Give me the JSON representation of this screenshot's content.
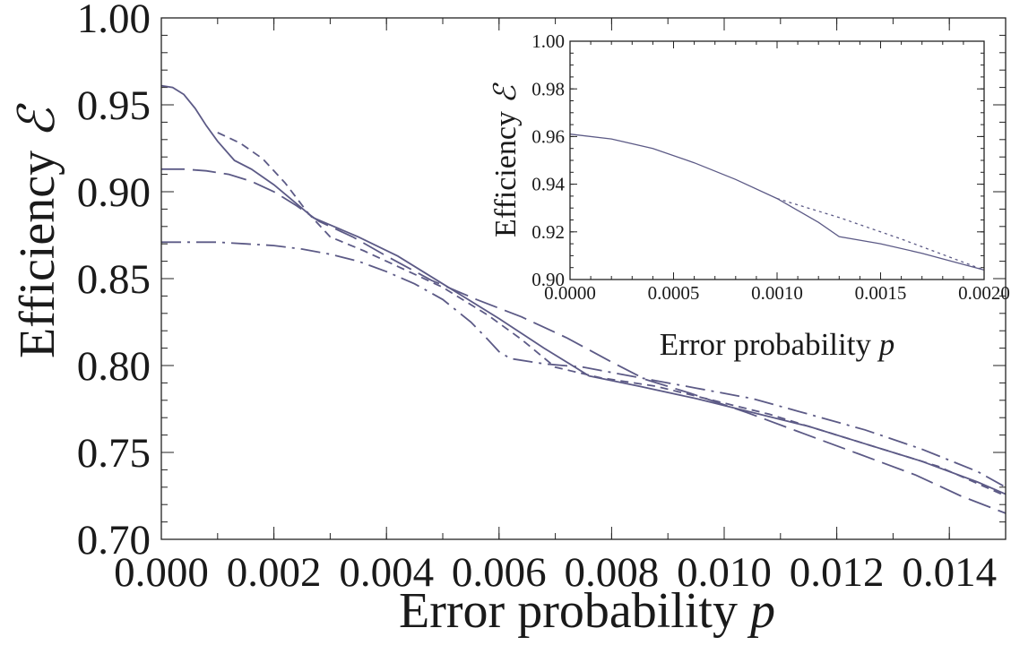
{
  "chart_data": [
    {
      "type": "line",
      "title": "",
      "xlabel": "Error probability",
      "xlabel_symbol": "p",
      "ylabel": "Efficiency",
      "ylabel_symbol": "ℰ",
      "xlim": [
        0,
        0.015
      ],
      "ylim": [
        0.7,
        1.0
      ],
      "xticks": [
        "0.000",
        "0.002",
        "0.004",
        "0.006",
        "0.008",
        "0.010",
        "0.012",
        "0.014"
      ],
      "yticks": [
        "0.70",
        "0.75",
        "0.80",
        "0.85",
        "0.90",
        "0.95",
        "1.00"
      ],
      "grid": false,
      "series": [
        {
          "style": "solid",
          "x": [
            0,
            0.0002,
            0.0004,
            0.0006,
            0.0008,
            0.001,
            0.0013,
            0.0016,
            0.002,
            0.0027,
            0.0035,
            0.0042,
            0.005,
            0.006,
            0.0068,
            0.0076,
            0.0085,
            0.0095,
            0.0105,
            0.0115,
            0.0125,
            0.0135,
            0.0145,
            0.015
          ],
          "y": [
            0.961,
            0.96,
            0.956,
            0.948,
            0.938,
            0.929,
            0.918,
            0.913,
            0.904,
            0.885,
            0.874,
            0.863,
            0.847,
            0.827,
            0.81,
            0.794,
            0.788,
            0.781,
            0.773,
            0.765,
            0.755,
            0.745,
            0.733,
            0.726
          ]
        },
        {
          "style": "short-dash",
          "x": [
            0.001,
            0.0014,
            0.0018,
            0.0022,
            0.0026,
            0.003,
            0.0036,
            0.0042,
            0.005,
            0.0058,
            0.0064,
            0.007,
            0.0078,
            0.0088,
            0.0098,
            0.0108,
            0.0118,
            0.0128,
            0.0138,
            0.015
          ],
          "y": [
            0.934,
            0.928,
            0.919,
            0.905,
            0.888,
            0.874,
            0.866,
            0.857,
            0.845,
            0.829,
            0.815,
            0.799,
            0.793,
            0.788,
            0.78,
            0.772,
            0.762,
            0.752,
            0.742,
            0.725
          ]
        },
        {
          "style": "long-dash",
          "x": [
            0,
            0.0004,
            0.0008,
            0.0012,
            0.0016,
            0.002,
            0.0024,
            0.0028,
            0.0034,
            0.004,
            0.0048,
            0.0056,
            0.0064,
            0.0072,
            0.008,
            0.0086,
            0.0094,
            0.0104,
            0.0114,
            0.0124,
            0.0134,
            0.0142,
            0.015
          ],
          "y": [
            0.913,
            0.913,
            0.912,
            0.91,
            0.906,
            0.9,
            0.892,
            0.883,
            0.874,
            0.863,
            0.849,
            0.838,
            0.828,
            0.816,
            0.802,
            0.792,
            0.784,
            0.773,
            0.761,
            0.749,
            0.737,
            0.725,
            0.715
          ]
        },
        {
          "style": "dash-dot",
          "x": [
            0,
            0.0005,
            0.001,
            0.0015,
            0.002,
            0.0025,
            0.003,
            0.0035,
            0.004,
            0.0045,
            0.005,
            0.0055,
            0.0058,
            0.006,
            0.0062,
            0.0068,
            0.0075,
            0.0085,
            0.0095,
            0.0105,
            0.0115,
            0.0125,
            0.0135,
            0.0145,
            0.015
          ],
          "y": [
            0.871,
            0.871,
            0.871,
            0.87,
            0.869,
            0.867,
            0.864,
            0.86,
            0.854,
            0.847,
            0.838,
            0.825,
            0.815,
            0.808,
            0.804,
            0.801,
            0.799,
            0.793,
            0.787,
            0.781,
            0.772,
            0.763,
            0.752,
            0.739,
            0.73
          ]
        }
      ]
    },
    {
      "type": "line",
      "title": "",
      "xlabel": "Error probability",
      "xlabel_symbol": "p",
      "ylabel": "Efficiency",
      "ylabel_symbol": "ℰ",
      "xlim": [
        0,
        0.002
      ],
      "ylim": [
        0.9,
        1.0
      ],
      "xticks": [
        "0.0000",
        "0.0005",
        "0.0010",
        "0.0015",
        "0.0020"
      ],
      "yticks": [
        "0.90",
        "0.92",
        "0.94",
        "0.96",
        "0.98",
        "1.00"
      ],
      "grid": false,
      "series": [
        {
          "style": "solid",
          "x": [
            0,
            0.0002,
            0.0004,
            0.0006,
            0.0008,
            0.001,
            0.0012,
            0.0013,
            0.0015,
            0.0017,
            0.002
          ],
          "y": [
            0.961,
            0.959,
            0.955,
            0.949,
            0.942,
            0.934,
            0.924,
            0.918,
            0.915,
            0.911,
            0.904
          ]
        },
        {
          "style": "dotted",
          "x": [
            0.001,
            0.0013,
            0.0016,
            0.002
          ],
          "y": [
            0.934,
            0.926,
            0.917,
            0.904
          ]
        }
      ]
    }
  ]
}
